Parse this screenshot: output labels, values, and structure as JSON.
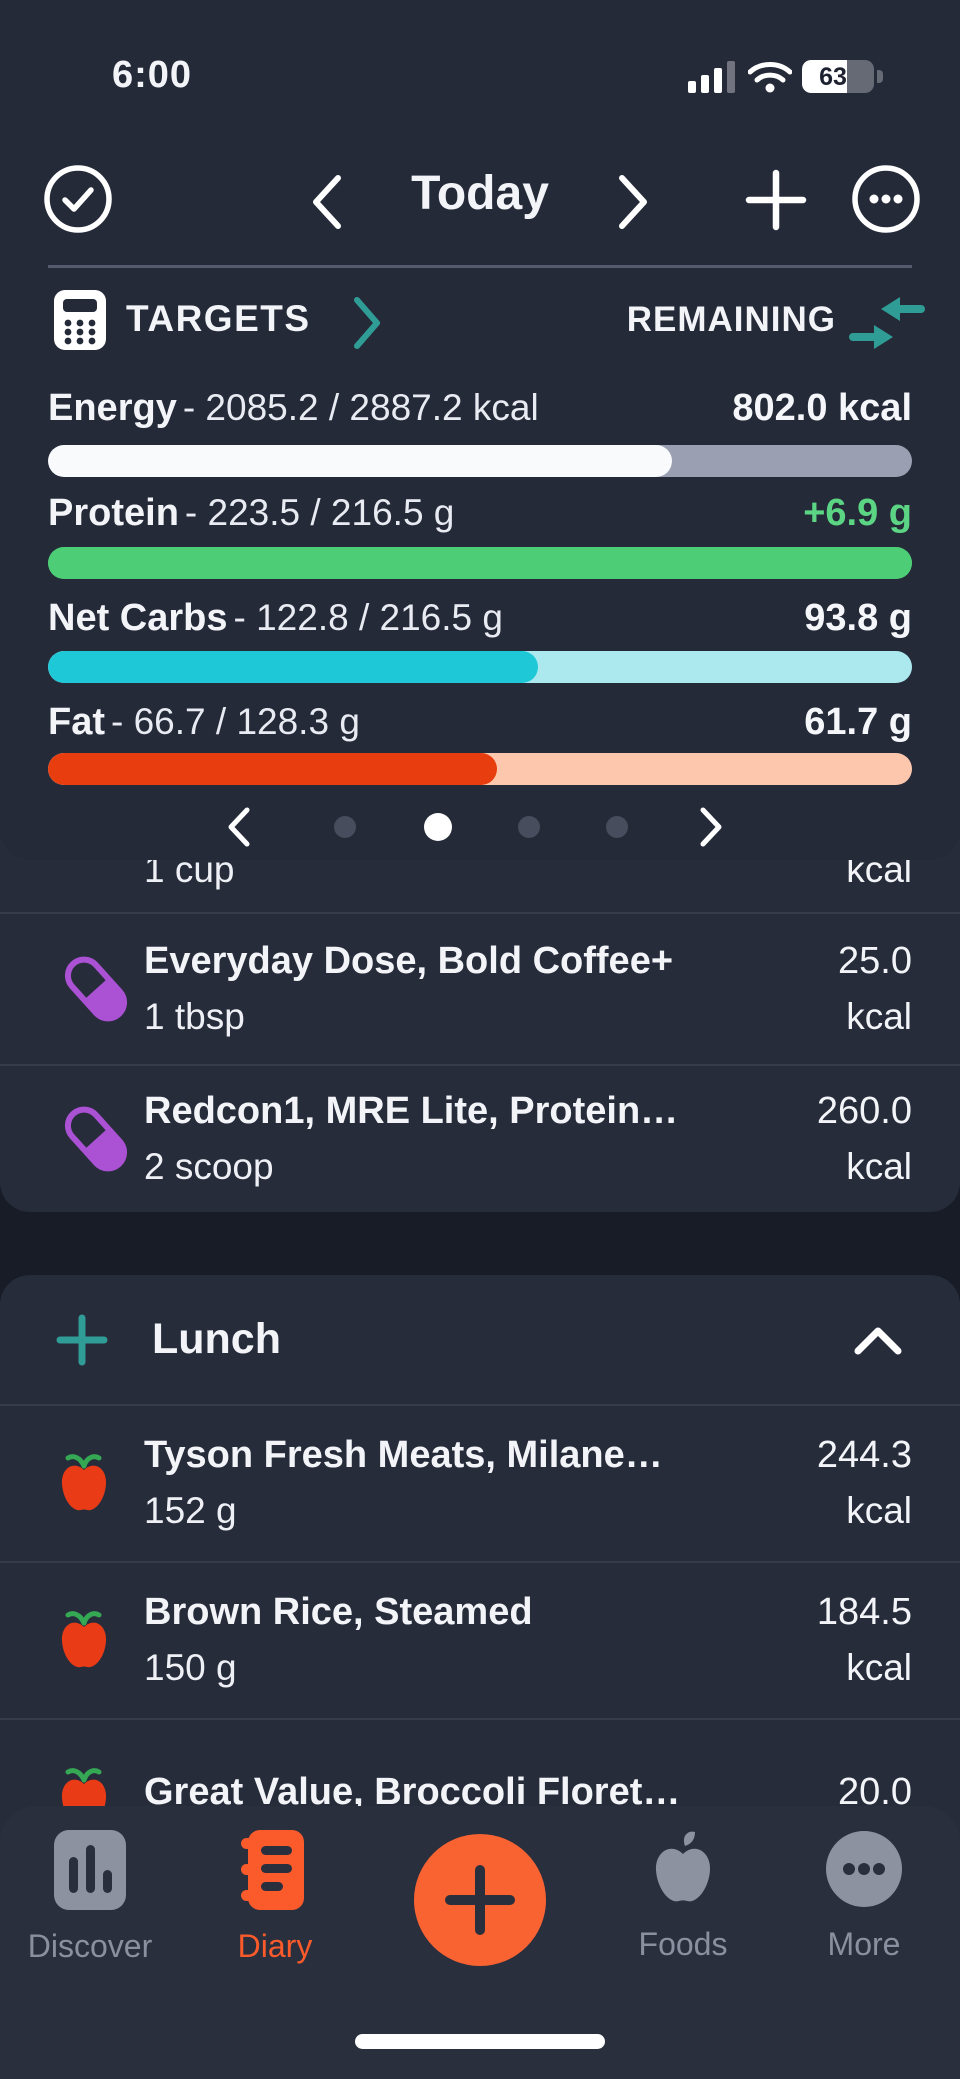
{
  "status_bar": {
    "time": "6:00",
    "battery_percent": "63",
    "battery_pct": 63
  },
  "header": {
    "title": "Today"
  },
  "targets": {
    "title": "TARGETS",
    "remaining_label": "REMAINING",
    "rows": [
      {
        "name": "Energy",
        "detail": "- 2085.2 / 2887.2 kcal",
        "remaining": "802.0 kcal",
        "pct": 72.2,
        "fill": "#f8fafc",
        "track": "#9aa0b1",
        "remaining_color": "#f4f6fa"
      },
      {
        "name": "Protein",
        "detail": "- 223.5 / 216.5 g",
        "remaining": "+6.9 g",
        "pct": 100,
        "fill": "#4dce76",
        "track": "#4dce76",
        "remaining_color": "#5bd584"
      },
      {
        "name": "Net Carbs",
        "detail": "- 122.8 / 216.5 g",
        "remaining": "93.8 g",
        "pct": 56.7,
        "fill": "#1fc8d7",
        "track": "#abe9ef",
        "remaining_color": "#f4f6fa"
      },
      {
        "name": "Fat",
        "detail": "- 66.7 / 128.3 g",
        "remaining": "61.7 g",
        "pct": 52.0,
        "fill": "#e83d0e",
        "track": "#fcc7ad",
        "remaining_color": "#f4f6fa"
      }
    ],
    "pagination": {
      "total_dots": 4,
      "active_dot": 2
    }
  },
  "diary": {
    "clipped_row": {
      "serving": "1 cup",
      "unit": "kcal"
    },
    "rows": [
      {
        "name": "Everyday Dose, Bold Coffee+",
        "serving": "1 tbsp",
        "amount": "25.0",
        "unit": "kcal"
      },
      {
        "name": "Redcon1, MRE Lite, Protein…",
        "serving": "2 scoop",
        "amount": "260.0",
        "unit": "kcal"
      }
    ],
    "lunch": {
      "title": "Lunch",
      "rows": [
        {
          "name": "Tyson Fresh Meats, Milane…",
          "serving": "152 g",
          "amount": "244.3",
          "unit": "kcal"
        },
        {
          "name": "Brown Rice, Steamed",
          "serving": "150 g",
          "amount": "184.5",
          "unit": "kcal"
        },
        {
          "name": "Great Value, Broccoli Floret…",
          "serving": "",
          "amount": "20.0",
          "unit": ""
        }
      ]
    }
  },
  "nav": {
    "items": [
      {
        "label": "Discover"
      },
      {
        "label": "Diary"
      },
      {
        "label": "Foods"
      },
      {
        "label": "More"
      }
    ],
    "active": "Diary"
  },
  "colors": {
    "accent_teal": "#2f9d96",
    "accent_orange": "#f96231",
    "pill_purple": "#ab51d4",
    "apple_red": "#e83b16",
    "leaf_green": "#35a853"
  }
}
